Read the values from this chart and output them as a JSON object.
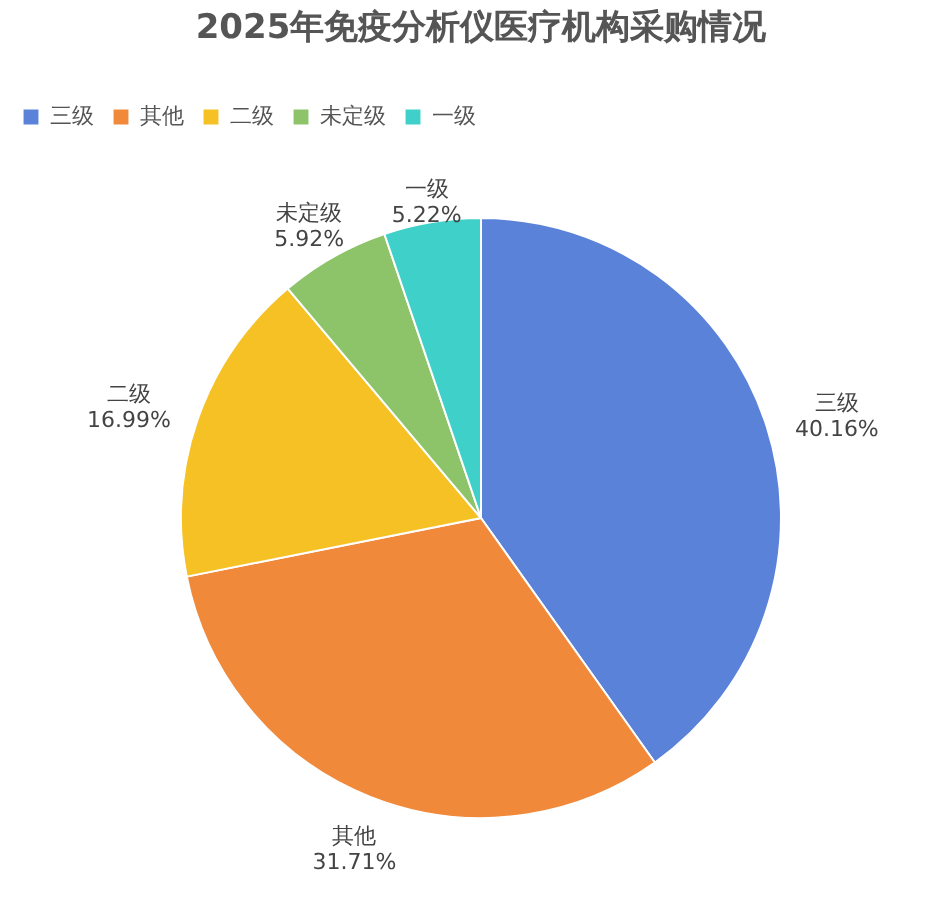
{
  "chart_data": {
    "type": "pie",
    "title": "2025年免疫分析仪医疗机构采购情况",
    "categories": [
      "三级",
      "其他",
      "二级",
      "未定级",
      "一级"
    ],
    "values": [
      40.16,
      31.71,
      16.99,
      5.92,
      5.22
    ],
    "value_labels": [
      "40.16%",
      "31.71%",
      "16.99%",
      "5.92%",
      "5.22%"
    ],
    "colors": [
      "#5b82d9",
      "#f0893a",
      "#f5c124",
      "#8dc46a",
      "#3fd0c9"
    ],
    "legend": "top"
  }
}
